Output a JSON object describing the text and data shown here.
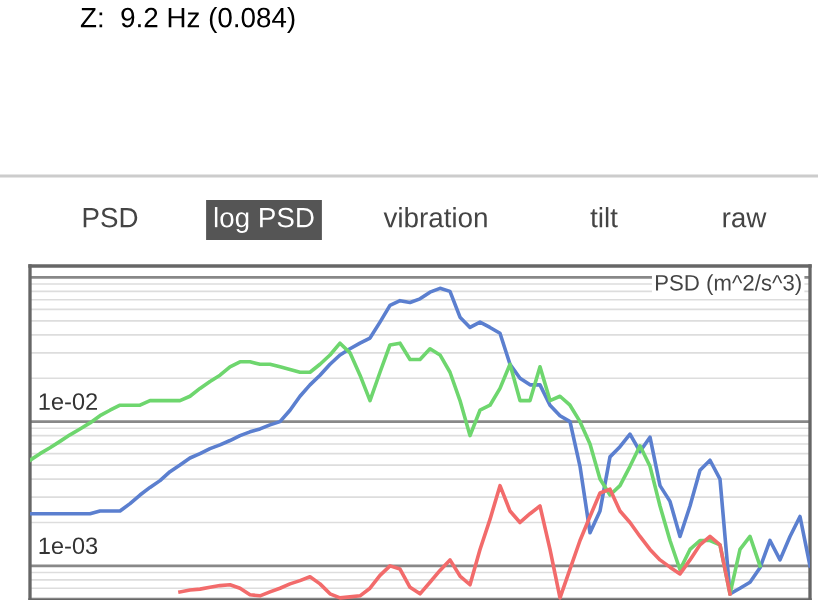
{
  "chart_data": {
    "type": "line",
    "ylabel": "PSD (m^2/s^3)",
    "log": "y",
    "annotations": [
      "Z:  9.2 Hz (0.084)",
      "PSD",
      "log PSD",
      "vibration",
      "tilt",
      "raw"
    ],
    "categories": [
      null,
      null,
      null,
      null,
      null,
      null,
      null,
      null,
      null,
      null,
      null,
      null,
      null,
      null,
      null,
      null,
      null,
      null,
      null,
      null,
      null,
      null,
      null,
      null,
      null,
      null,
      null,
      null,
      null,
      null,
      null,
      null,
      null,
      null,
      null,
      null,
      null,
      null,
      null,
      null,
      null,
      null,
      null,
      null,
      null,
      null,
      null,
      null,
      null,
      null,
      null,
      null,
      null,
      null,
      null,
      null,
      null,
      null,
      null,
      null,
      null,
      null,
      null,
      null,
      null,
      null,
      null,
      null,
      null,
      null,
      null,
      null,
      null,
      null,
      null,
      null,
      null,
      null,
      null
    ],
    "ylim": [
      0.00058,
      0.12
    ],
    "yticks": [
      {
        "value": 0.001,
        "label": "1e-03"
      },
      {
        "value": 0.01,
        "label": "1e-02"
      },
      {
        "value": 0.1,
        "label": null
      }
    ],
    "tick_labels": "y",
    "grid": "y",
    "marker": "none",
    "line_style": "solid",
    "series": [
      {
        "color": "#5b7fcf",
        "values": [
          0.0023,
          0.0023,
          0.0023,
          0.0023,
          0.0023,
          0.0023,
          0.0023,
          0.0024,
          0.0024,
          0.0024,
          0.0027,
          0.0031,
          0.0035,
          0.0039,
          0.0045,
          0.005,
          0.0056,
          0.006,
          0.0065,
          0.0069,
          0.0074,
          0.008,
          0.0085,
          0.0089,
          0.0095,
          0.01,
          0.012,
          0.015,
          0.018,
          0.021,
          0.025,
          0.029,
          0.032,
          0.035,
          0.038,
          0.049,
          0.064,
          0.069,
          0.067,
          0.071,
          0.079,
          0.084,
          0.08,
          0.053,
          0.045,
          0.049,
          0.045,
          0.041,
          0.025,
          0.02,
          0.018,
          0.018,
          0.013,
          0.011,
          0.01,
          0.0049,
          0.0017,
          0.0024,
          0.0057,
          0.0067,
          0.0082,
          0.0062,
          0.0078,
          0.0036,
          0.0028,
          0.0016,
          0.0026,
          0.0046,
          0.0054,
          0.004,
          0.00064,
          0.0007,
          0.00077,
          0.00097,
          0.0015,
          0.0011,
          0.0016,
          0.0022,
          0.001
        ]
      },
      {
        "color": "#6ed66e",
        "values": [
          0.0054,
          0.006,
          0.0066,
          0.0073,
          0.0081,
          0.0089,
          0.0098,
          0.011,
          0.012,
          0.013,
          0.013,
          0.013,
          0.014,
          0.014,
          0.014,
          0.014,
          0.015,
          0.017,
          0.019,
          0.021,
          0.024,
          0.026,
          0.026,
          0.025,
          0.025,
          0.024,
          0.023,
          0.022,
          0.022,
          0.025,
          0.029,
          0.035,
          0.03,
          0.021,
          0.014,
          0.022,
          0.034,
          0.035,
          0.027,
          0.027,
          0.032,
          0.029,
          0.022,
          0.014,
          0.008,
          0.012,
          0.013,
          0.017,
          0.025,
          0.014,
          0.014,
          0.024,
          0.014,
          0.015,
          0.013,
          0.01,
          0.007,
          0.004,
          0.0031,
          0.0036,
          0.0049,
          0.0068,
          0.0049,
          0.0026,
          0.0015,
          0.00094,
          0.0013,
          0.0015,
          0.0015,
          0.0014,
          0.00064,
          0.0013,
          0.0016,
          0.001,
          null,
          null,
          null,
          null,
          null
        ]
      },
      {
        "color": "#f26b6b",
        "values": [
          null,
          null,
          null,
          null,
          null,
          null,
          null,
          null,
          null,
          null,
          null,
          null,
          null,
          null,
          null,
          0.00066,
          0.00068,
          0.00069,
          0.00071,
          0.00073,
          0.00074,
          0.0007,
          0.00063,
          0.00062,
          0.00066,
          0.0007,
          0.00075,
          0.00079,
          0.00084,
          0.00075,
          0.00064,
          0.0006,
          0.00061,
          0.00062,
          0.0007,
          0.00086,
          0.001,
          0.00095,
          0.00071,
          0.00064,
          0.00077,
          0.00093,
          0.0011,
          0.00085,
          0.00074,
          0.0013,
          0.0021,
          0.0036,
          0.0024,
          0.002,
          0.0023,
          0.0026,
          0.0013,
          0.0006,
          0.00095,
          0.0015,
          0.0022,
          0.0032,
          0.0034,
          0.0024,
          0.002,
          0.0016,
          0.0013,
          0.0011,
          0.00098,
          0.00088,
          0.0011,
          0.0014,
          0.0016,
          0.0014,
          0.00064,
          null,
          null,
          null,
          null,
          null,
          null,
          null,
          null
        ]
      }
    ]
  }
}
